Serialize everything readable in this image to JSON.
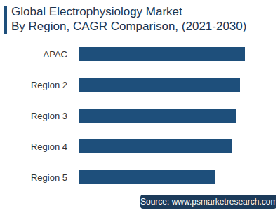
{
  "chart_data": {
    "type": "bar",
    "title": [
      "Global Electrophysiology Market",
      "By Region, CAGR Comparison, (2021-2030)"
    ],
    "categories": [
      "APAC",
      "Region 2",
      "Region 3",
      "Region 4",
      "Region 5"
    ],
    "values": [
      237,
      230,
      224,
      219,
      195
    ],
    "color": "#1e4f7b",
    "orientation": "horizontal",
    "xlim": [
      0,
      237
    ],
    "tick_labels": "y",
    "grid": false,
    "data_labels": false,
    "source": "Source: www.psmarketresearch.com"
  }
}
